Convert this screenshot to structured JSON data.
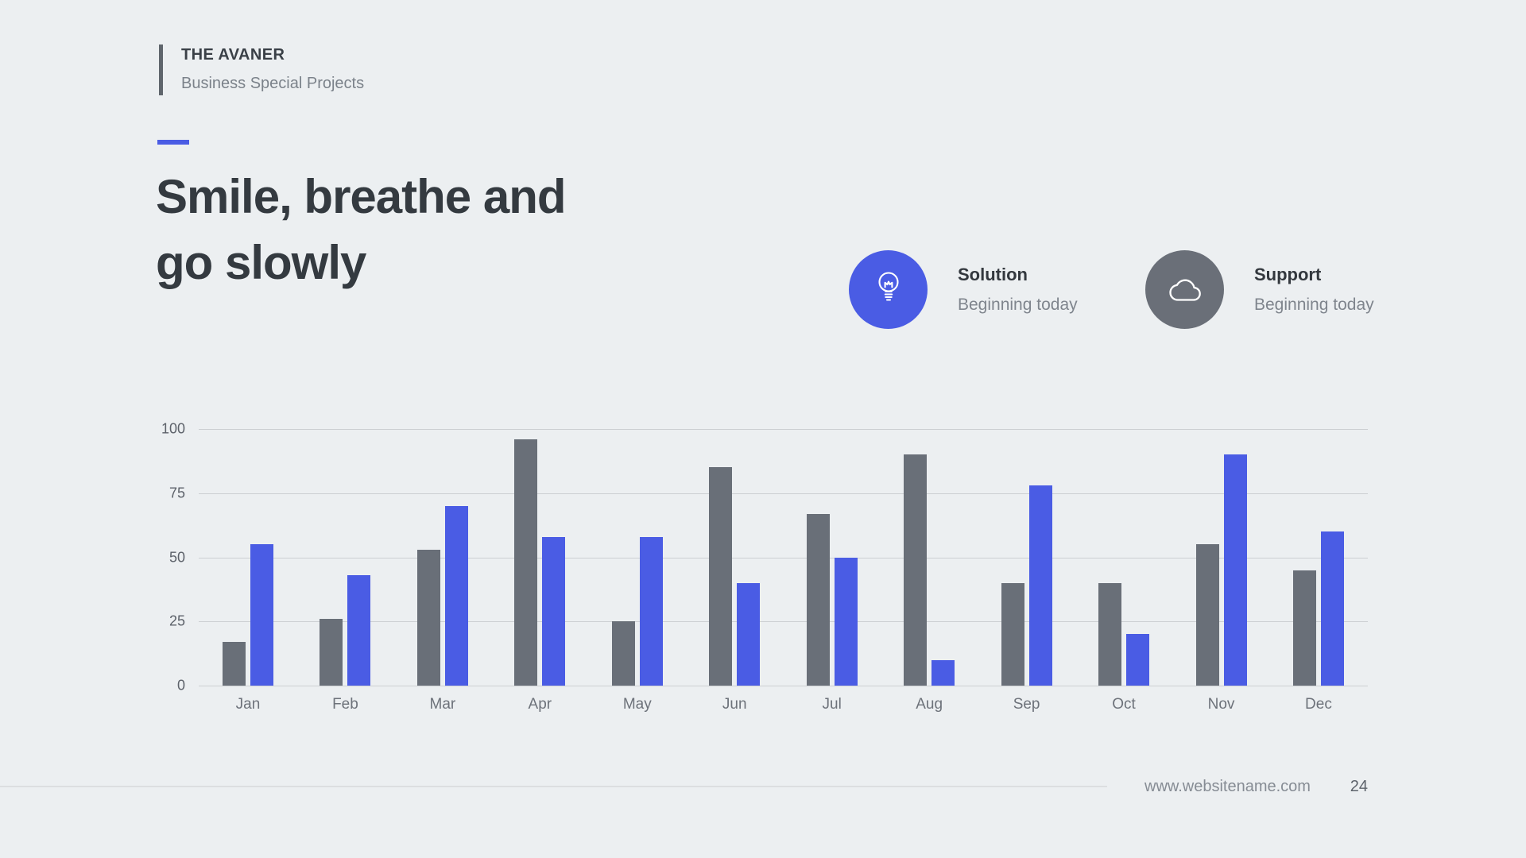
{
  "slide": {
    "brand": {
      "name": "THE AVANER",
      "tagline": "Business Special Projects"
    },
    "title": "Smile, breathe and\ngo slowly",
    "features": [
      {
        "title": "Solution",
        "subtitle": "Beginning today",
        "icon": "lightbulb-icon",
        "circle_color": "#4a5ce4"
      },
      {
        "title": "Support",
        "subtitle": "Beginning today",
        "icon": "cloud-icon",
        "circle_color": "#6a6f78"
      }
    ],
    "footer": {
      "website": "www.websitename.com",
      "page_number": "24"
    }
  },
  "chart_data": {
    "type": "bar",
    "title": "",
    "xlabel": "",
    "ylabel": "",
    "categories": [
      "Jan",
      "Feb",
      "Mar",
      "Apr",
      "May",
      "Jun",
      "Jul",
      "Aug",
      "Sep",
      "Oct",
      "Nov",
      "Dec"
    ],
    "series": [
      {
        "name": "gray",
        "color": "#696f78",
        "values": [
          17,
          26,
          53,
          96,
          25,
          85,
          67,
          90,
          40,
          40,
          55,
          45
        ]
      },
      {
        "name": "blue",
        "color": "#4a5ce4",
        "values": [
          55,
          43,
          70,
          58,
          58,
          40,
          50,
          10,
          78,
          20,
          90,
          60
        ]
      }
    ],
    "ylim": [
      0,
      100
    ],
    "yticks": [
      0,
      25,
      50,
      75,
      100
    ],
    "grid": true,
    "legend": "none"
  }
}
